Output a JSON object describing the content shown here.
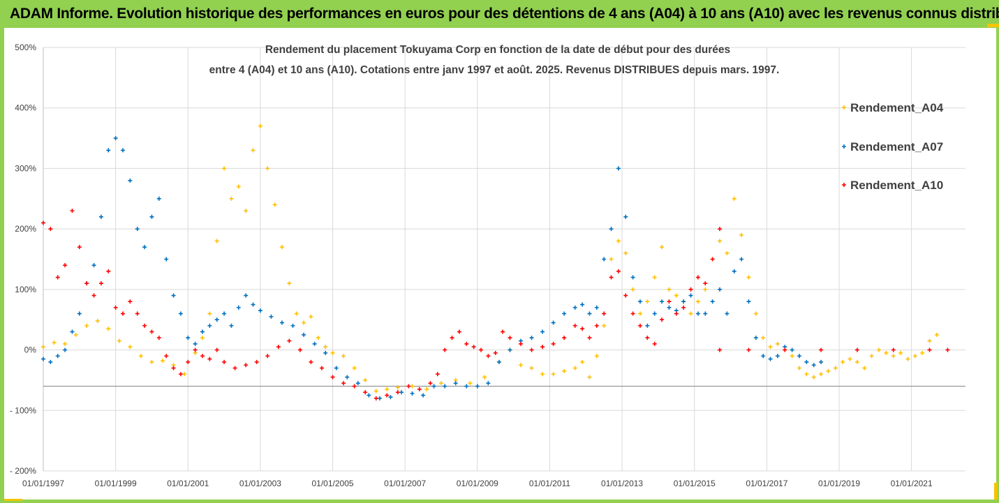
{
  "header": {
    "title": "ADAM Informe. Evolution historique des performances en euros pour des détentions de 4 ans (A04) à 10 ans (A10) avec les revenus connus distribués"
  },
  "colors": {
    "frame": "#92d050",
    "corner": "#f4c400",
    "A04": "#ffc000",
    "A07": "#0070c0",
    "A10": "#ff0000",
    "grid": "#d9d9d9"
  },
  "chart_data": {
    "type": "scatter",
    "title_line1": "Rendement du placement Tokuyama Corp en fonction de la date de début pour des durées",
    "title_line2": "entre 4 (A04) et 10 ans (A10). Cotations entre janv 1997 et août. 2025. Revenus DISTRIBUES depuis mars. 1997.",
    "x_range": [
      "1997-01-01",
      "2022-06-30"
    ],
    "ylim": [
      -200,
      500
    ],
    "y_ticks": [
      "500%",
      "400%",
      "300%",
      "200%",
      "100%",
      "0%",
      "- 100%",
      "- 200%"
    ],
    "y_tick_values": [
      500,
      400,
      300,
      200,
      100,
      0,
      -100,
      -200
    ],
    "x_ticks": [
      "01/01/1997",
      "01/01/1999",
      "01/01/2001",
      "01/01/2003",
      "01/01/2005",
      "01/01/2007",
      "01/01/2009",
      "01/01/2011",
      "01/01/2013",
      "01/01/2015",
      "01/01/2017",
      "01/01/2019",
      "01/01/2021"
    ],
    "x_tick_values": [
      1997,
      1999,
      2001,
      2003,
      2005,
      2007,
      2009,
      2011,
      2013,
      2015,
      2017,
      2019,
      2021
    ],
    "reference_line_y": -60,
    "grid": "horizontal",
    "legend_position": "right",
    "series": [
      {
        "name": "Rendement_A04",
        "points": [
          [
            1997.0,
            5
          ],
          [
            1997.3,
            12
          ],
          [
            1997.6,
            10
          ],
          [
            1997.9,
            25
          ],
          [
            1998.2,
            40
          ],
          [
            1998.5,
            48
          ],
          [
            1998.8,
            35
          ],
          [
            1999.1,
            15
          ],
          [
            1999.4,
            5
          ],
          [
            1999.7,
            -10
          ],
          [
            2000.0,
            -20
          ],
          [
            2000.3,
            -18
          ],
          [
            2000.6,
            -25
          ],
          [
            2000.9,
            -40
          ],
          [
            2001.2,
            -5
          ],
          [
            2001.4,
            20
          ],
          [
            2001.6,
            60
          ],
          [
            2001.8,
            180
          ],
          [
            2002.0,
            300
          ],
          [
            2002.2,
            250
          ],
          [
            2002.4,
            270
          ],
          [
            2002.6,
            230
          ],
          [
            2002.8,
            330
          ],
          [
            2003.0,
            370
          ],
          [
            2003.2,
            300
          ],
          [
            2003.4,
            240
          ],
          [
            2003.6,
            170
          ],
          [
            2003.8,
            110
          ],
          [
            2004.0,
            60
          ],
          [
            2004.2,
            45
          ],
          [
            2004.4,
            55
          ],
          [
            2004.6,
            20
          ],
          [
            2004.8,
            5
          ],
          [
            2005.0,
            -5
          ],
          [
            2005.3,
            -10
          ],
          [
            2005.6,
            -30
          ],
          [
            2005.9,
            -50
          ],
          [
            2006.2,
            -68
          ],
          [
            2006.5,
            -65
          ],
          [
            2006.8,
            -62
          ],
          [
            2007.2,
            -60
          ],
          [
            2007.6,
            -65
          ],
          [
            2008.0,
            -55
          ],
          [
            2008.4,
            -50
          ],
          [
            2008.8,
            -55
          ],
          [
            2009.2,
            -45
          ],
          [
            2009.6,
            -20
          ],
          [
            2009.9,
            0
          ],
          [
            2010.2,
            -25
          ],
          [
            2010.5,
            -30
          ],
          [
            2010.8,
            -40
          ],
          [
            2011.1,
            -40
          ],
          [
            2011.4,
            -35
          ],
          [
            2011.7,
            -30
          ],
          [
            2011.9,
            -20
          ],
          [
            2012.1,
            -45
          ],
          [
            2012.3,
            -10
          ],
          [
            2012.5,
            40
          ],
          [
            2012.7,
            150
          ],
          [
            2012.9,
            180
          ],
          [
            2013.1,
            160
          ],
          [
            2013.3,
            100
          ],
          [
            2013.5,
            60
          ],
          [
            2013.7,
            80
          ],
          [
            2013.9,
            120
          ],
          [
            2014.1,
            170
          ],
          [
            2014.3,
            100
          ],
          [
            2014.5,
            90
          ],
          [
            2014.7,
            80
          ],
          [
            2014.9,
            60
          ],
          [
            2015.1,
            80
          ],
          [
            2015.3,
            100
          ],
          [
            2015.5,
            150
          ],
          [
            2015.7,
            180
          ],
          [
            2015.9,
            160
          ],
          [
            2016.1,
            250
          ],
          [
            2016.3,
            190
          ],
          [
            2016.5,
            120
          ],
          [
            2016.7,
            60
          ],
          [
            2016.9,
            20
          ],
          [
            2017.1,
            5
          ],
          [
            2017.3,
            10
          ],
          [
            2017.5,
            0
          ],
          [
            2017.7,
            -10
          ],
          [
            2017.9,
            -30
          ],
          [
            2018.1,
            -40
          ],
          [
            2018.3,
            -45
          ],
          [
            2018.5,
            -40
          ],
          [
            2018.7,
            -35
          ],
          [
            2018.9,
            -30
          ],
          [
            2019.1,
            -20
          ],
          [
            2019.3,
            -15
          ],
          [
            2019.5,
            -20
          ],
          [
            2019.7,
            -30
          ],
          [
            2019.9,
            -10
          ],
          [
            2020.1,
            0
          ],
          [
            2020.3,
            -5
          ],
          [
            2020.5,
            -10
          ],
          [
            2020.7,
            -5
          ],
          [
            2020.9,
            -15
          ],
          [
            2021.1,
            -10
          ],
          [
            2021.3,
            -5
          ],
          [
            2021.5,
            15
          ],
          [
            2021.7,
            25
          ]
        ]
      },
      {
        "name": "Rendement_A07",
        "points": [
          [
            1997.0,
            -15
          ],
          [
            1997.2,
            -20
          ],
          [
            1997.4,
            -10
          ],
          [
            1997.6,
            0
          ],
          [
            1997.8,
            30
          ],
          [
            1998.0,
            60
          ],
          [
            1998.2,
            110
          ],
          [
            1998.4,
            140
          ],
          [
            1998.6,
            220
          ],
          [
            1998.8,
            330
          ],
          [
            1999.0,
            350
          ],
          [
            1999.2,
            330
          ],
          [
            1999.4,
            280
          ],
          [
            1999.6,
            200
          ],
          [
            1999.8,
            170
          ],
          [
            2000.0,
            220
          ],
          [
            2000.2,
            250
          ],
          [
            2000.4,
            150
          ],
          [
            2000.6,
            90
          ],
          [
            2000.8,
            60
          ],
          [
            2001.0,
            20
          ],
          [
            2001.2,
            10
          ],
          [
            2001.4,
            30
          ],
          [
            2001.6,
            40
          ],
          [
            2001.8,
            50
          ],
          [
            2002.0,
            60
          ],
          [
            2002.2,
            40
          ],
          [
            2002.4,
            70
          ],
          [
            2002.6,
            90
          ],
          [
            2002.8,
            75
          ],
          [
            2003.0,
            65
          ],
          [
            2003.3,
            55
          ],
          [
            2003.6,
            45
          ],
          [
            2003.9,
            40
          ],
          [
            2004.2,
            25
          ],
          [
            2004.5,
            10
          ],
          [
            2004.8,
            -5
          ],
          [
            2005.1,
            -30
          ],
          [
            2005.4,
            -45
          ],
          [
            2005.7,
            -55
          ],
          [
            2006.0,
            -75
          ],
          [
            2006.3,
            -80
          ],
          [
            2006.6,
            -78
          ],
          [
            2006.9,
            -70
          ],
          [
            2007.2,
            -72
          ],
          [
            2007.5,
            -75
          ],
          [
            2007.8,
            -60
          ],
          [
            2008.1,
            -60
          ],
          [
            2008.4,
            -55
          ],
          [
            2008.7,
            -60
          ],
          [
            2009.0,
            -60
          ],
          [
            2009.3,
            -55
          ],
          [
            2009.6,
            -20
          ],
          [
            2009.9,
            0
          ],
          [
            2010.2,
            15
          ],
          [
            2010.5,
            20
          ],
          [
            2010.8,
            30
          ],
          [
            2011.1,
            45
          ],
          [
            2011.4,
            60
          ],
          [
            2011.7,
            70
          ],
          [
            2011.9,
            75
          ],
          [
            2012.1,
            60
          ],
          [
            2012.3,
            70
          ],
          [
            2012.5,
            150
          ],
          [
            2012.7,
            200
          ],
          [
            2012.9,
            300
          ],
          [
            2013.1,
            220
          ],
          [
            2013.3,
            120
          ],
          [
            2013.5,
            80
          ],
          [
            2013.7,
            40
          ],
          [
            2013.9,
            60
          ],
          [
            2014.1,
            80
          ],
          [
            2014.3,
            70
          ],
          [
            2014.5,
            65
          ],
          [
            2014.7,
            80
          ],
          [
            2014.9,
            90
          ],
          [
            2015.1,
            60
          ],
          [
            2015.3,
            60
          ],
          [
            2015.5,
            80
          ],
          [
            2015.7,
            100
          ],
          [
            2015.9,
            60
          ],
          [
            2016.1,
            130
          ],
          [
            2016.3,
            150
          ],
          [
            2016.5,
            80
          ],
          [
            2016.7,
            20
          ],
          [
            2016.9,
            -10
          ],
          [
            2017.1,
            -15
          ],
          [
            2017.3,
            -10
          ],
          [
            2017.5,
            5
          ],
          [
            2017.7,
            0
          ],
          [
            2017.9,
            -10
          ],
          [
            2018.1,
            -20
          ],
          [
            2018.3,
            -25
          ],
          [
            2018.5,
            -20
          ]
        ]
      },
      {
        "name": "Rendement_A10",
        "points": [
          [
            1997.0,
            210
          ],
          [
            1997.2,
            200
          ],
          [
            1997.4,
            120
          ],
          [
            1997.6,
            140
          ],
          [
            1997.8,
            230
          ],
          [
            1998.0,
            170
          ],
          [
            1998.2,
            110
          ],
          [
            1998.4,
            90
          ],
          [
            1998.6,
            110
          ],
          [
            1998.8,
            130
          ],
          [
            1999.0,
            70
          ],
          [
            1999.2,
            60
          ],
          [
            1999.4,
            80
          ],
          [
            1999.6,
            60
          ],
          [
            1999.8,
            40
          ],
          [
            2000.0,
            30
          ],
          [
            2000.2,
            20
          ],
          [
            2000.4,
            -10
          ],
          [
            2000.6,
            -30
          ],
          [
            2000.8,
            -40
          ],
          [
            2001.0,
            -20
          ],
          [
            2001.2,
            0
          ],
          [
            2001.4,
            -10
          ],
          [
            2001.6,
            -15
          ],
          [
            2001.8,
            0
          ],
          [
            2002.0,
            -20
          ],
          [
            2002.3,
            -30
          ],
          [
            2002.6,
            -25
          ],
          [
            2002.9,
            -20
          ],
          [
            2003.2,
            -10
          ],
          [
            2003.5,
            5
          ],
          [
            2003.8,
            15
          ],
          [
            2004.1,
            0
          ],
          [
            2004.4,
            -20
          ],
          [
            2004.7,
            -30
          ],
          [
            2005.0,
            -45
          ],
          [
            2005.3,
            -55
          ],
          [
            2005.6,
            -60
          ],
          [
            2005.9,
            -70
          ],
          [
            2006.2,
            -80
          ],
          [
            2006.5,
            -75
          ],
          [
            2006.8,
            -70
          ],
          [
            2007.1,
            -60
          ],
          [
            2007.4,
            -65
          ],
          [
            2007.7,
            -55
          ],
          [
            2007.9,
            -40
          ],
          [
            2008.1,
            0
          ],
          [
            2008.3,
            20
          ],
          [
            2008.5,
            30
          ],
          [
            2008.7,
            10
          ],
          [
            2008.9,
            5
          ],
          [
            2009.1,
            0
          ],
          [
            2009.3,
            -10
          ],
          [
            2009.5,
            -5
          ],
          [
            2009.7,
            30
          ],
          [
            2009.9,
            20
          ],
          [
            2010.2,
            10
          ],
          [
            2010.5,
            0
          ],
          [
            2010.8,
            5
          ],
          [
            2011.1,
            10
          ],
          [
            2011.4,
            20
          ],
          [
            2011.7,
            40
          ],
          [
            2011.9,
            35
          ],
          [
            2012.1,
            20
          ],
          [
            2012.3,
            40
          ],
          [
            2012.5,
            60
          ],
          [
            2012.7,
            120
          ],
          [
            2012.9,
            130
          ],
          [
            2013.1,
            90
          ],
          [
            2013.3,
            60
          ],
          [
            2013.5,
            40
          ],
          [
            2013.7,
            20
          ],
          [
            2013.9,
            10
          ],
          [
            2014.1,
            50
          ],
          [
            2014.3,
            80
          ],
          [
            2014.5,
            60
          ],
          [
            2014.7,
            70
          ],
          [
            2014.9,
            100
          ],
          [
            2015.1,
            120
          ],
          [
            2015.3,
            110
          ],
          [
            2015.5,
            150
          ],
          [
            2015.7,
            200
          ],
          [
            2015.7,
            0
          ],
          [
            2016.5,
            0
          ],
          [
            2017.5,
            0
          ],
          [
            2018.5,
            0
          ],
          [
            2019.5,
            0
          ],
          [
            2020.5,
            0
          ],
          [
            2021.5,
            0
          ],
          [
            2022.0,
            0
          ]
        ]
      }
    ]
  }
}
